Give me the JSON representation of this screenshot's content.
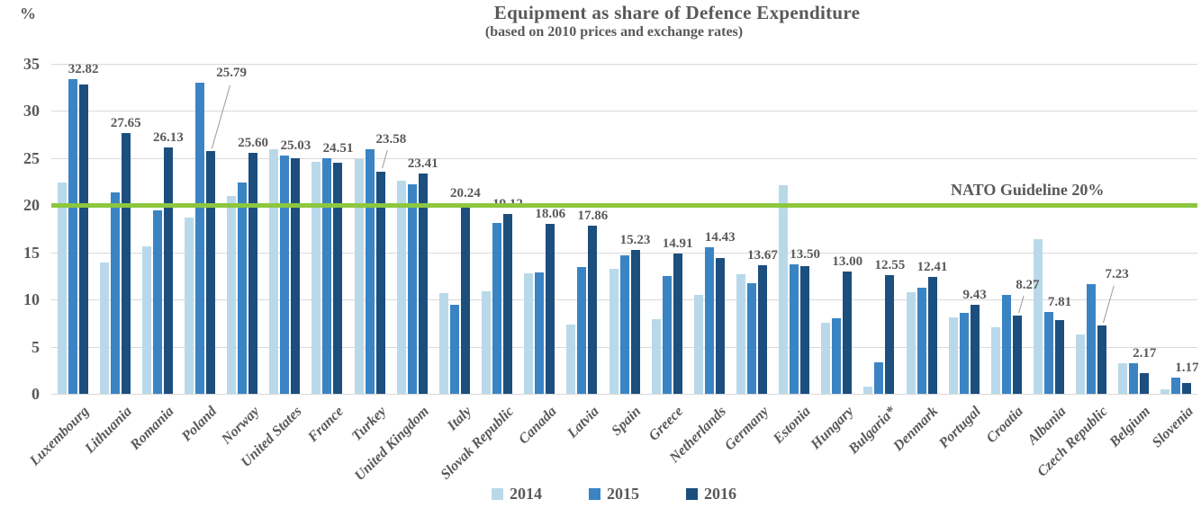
{
  "page": {
    "title": "Equipment as share of Defence Expenditure",
    "subtitle": "(based on 2010 prices and exchange rates)",
    "y_unit_label": "%"
  },
  "guideline": {
    "label": "NATO Guideline 20%",
    "value": 20,
    "color": "#8dc63f"
  },
  "chart_data": {
    "type": "bar",
    "title": "Equipment as share of Defence Expenditure",
    "subtitle": "(based on 2010 prices and exchange rates)",
    "ylabel": "%",
    "ylim": [
      0,
      35
    ],
    "yticks": [
      0,
      5,
      10,
      15,
      20,
      25,
      30,
      35
    ],
    "grid": true,
    "legend_position": "bottom",
    "guideline": {
      "label": "NATO Guideline 20%",
      "value": 20,
      "color": "#8dc63f"
    },
    "categories": [
      "Luxembourg",
      "Lithuania",
      "Romania",
      "Poland",
      "Norway",
      "United States",
      "France",
      "Turkey",
      "United Kingdom",
      "Italy",
      "Slovak Republic",
      "Canada",
      "Latvia",
      "Spain",
      "Greece",
      "Netherlands",
      "Germany",
      "Estonia",
      "Hungary",
      "Bulgaria*",
      "Denmark",
      "Portugal",
      "Croatia",
      "Albania",
      "Czech Republic",
      "Belgium",
      "Slovenia"
    ],
    "series": [
      {
        "name": "2014",
        "color": "#b9d9ea",
        "values": [
          22.4,
          13.9,
          15.6,
          18.7,
          21.0,
          25.9,
          24.6,
          24.9,
          22.6,
          10.7,
          10.9,
          12.8,
          7.3,
          13.3,
          7.9,
          10.5,
          12.7,
          22.1,
          7.5,
          0.8,
          10.8,
          8.1,
          7.1,
          16.4,
          6.3,
          3.2,
          0.5
        ]
      },
      {
        "name": "2015",
        "color": "#3a84c4",
        "values": [
          33.4,
          21.4,
          19.5,
          33.0,
          22.4,
          25.3,
          25.0,
          25.9,
          22.2,
          9.4,
          18.1,
          12.9,
          13.4,
          14.7,
          12.5,
          15.5,
          11.7,
          13.7,
          8.0,
          3.3,
          11.3,
          8.6,
          10.5,
          8.7,
          11.6,
          3.2,
          1.7
        ]
      },
      {
        "name": "2016",
        "color": "#1c4e7e",
        "values": [
          32.82,
          27.65,
          26.13,
          25.79,
          25.6,
          25.03,
          24.51,
          23.58,
          23.41,
          20.24,
          19.12,
          18.06,
          17.86,
          15.23,
          14.91,
          14.43,
          13.67,
          13.5,
          13.0,
          12.55,
          12.41,
          9.43,
          8.27,
          7.81,
          7.23,
          2.17,
          1.17
        ],
        "data_labels": [
          "32.82",
          "27.65",
          "26.13",
          "25.79",
          "25.60",
          "25.03",
          "24.51",
          "23.58",
          "23.41",
          "20.24",
          "19.12",
          "18.06",
          "17.86",
          "15.23",
          "14.91",
          "14.43",
          "13.67",
          "13.50",
          "13.00",
          "12.55",
          "12.41",
          "9.43",
          "8.27",
          "7.81",
          "7.23",
          "2.17",
          "1.17"
        ]
      }
    ]
  }
}
